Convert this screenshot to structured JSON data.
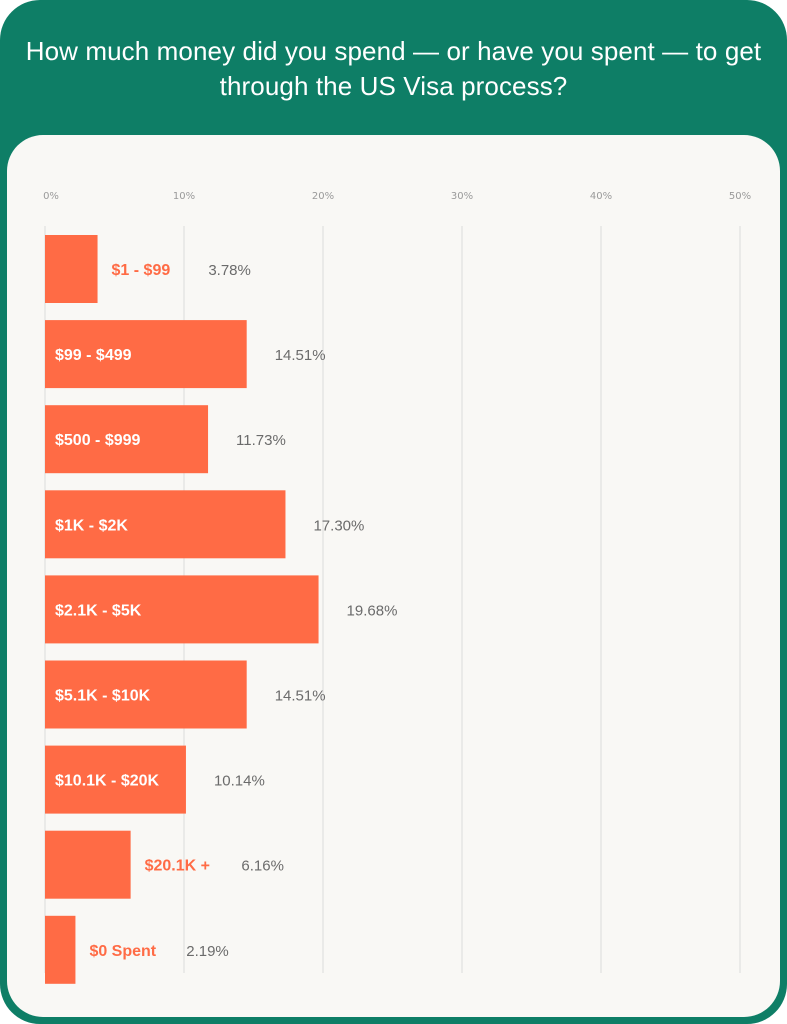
{
  "title": "How much money did you spend — or have you spent — to get through the US Visa process?",
  "colors": {
    "header": "#0e7e66",
    "panel": "#f9f8f5",
    "bar": "#ff6b45",
    "inside_label": "#ffffff",
    "outside_label": "#ff6b45",
    "value_label": "#6b6b6b",
    "grid": "#dcdcdc"
  },
  "chart_data": {
    "type": "bar",
    "orientation": "horizontal",
    "title": "How much money did you spend — or have you spent — to get through the US Visa process?",
    "categories": [
      "$1 - $99",
      "$99 - $499",
      "$500 - $999",
      "$1K - $2K",
      "$2.1K - $5K",
      "$5.1K  - $10K",
      "$10.1K - $20K",
      "$20.1K +",
      "$0 Spent"
    ],
    "values": [
      3.78,
      14.51,
      11.73,
      17.3,
      19.68,
      14.51,
      10.14,
      6.16,
      2.19
    ],
    "value_labels": [
      "3.78%",
      "14.51%",
      "11.73%",
      "17.30%",
      "19.68%",
      "14.51%",
      "10.14%",
      "6.16%",
      "2.19%"
    ],
    "xlim": [
      0,
      50
    ],
    "x_ticks": [
      0,
      10,
      20,
      30,
      40,
      50
    ],
    "x_tick_labels": [
      "0%",
      "10%",
      "20%",
      "30%",
      "40%",
      "50%"
    ],
    "grid": true,
    "axis_position": "top",
    "xlabel": "",
    "ylabel": ""
  }
}
